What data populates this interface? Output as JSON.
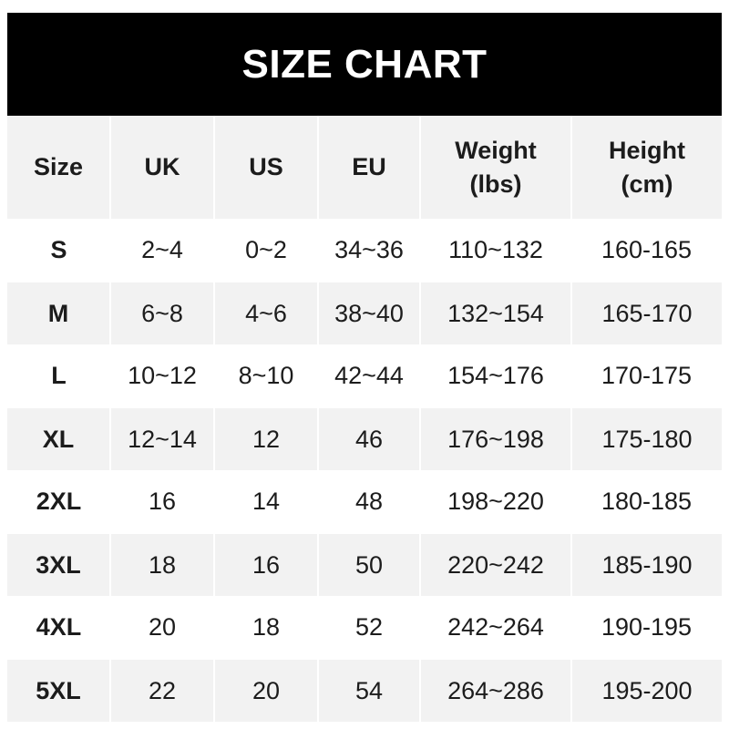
{
  "title": "SIZE CHART",
  "columns": [
    "Size",
    "UK",
    "US",
    "EU",
    "Weight\n(lbs)",
    "Height\n(cm)"
  ],
  "rows": [
    [
      "S",
      "2~4",
      "0~2",
      "34~36",
      "110~132",
      "160-165"
    ],
    [
      "M",
      "6~8",
      "4~6",
      "38~40",
      "132~154",
      "165-170"
    ],
    [
      "L",
      "10~12",
      "8~10",
      "42~44",
      "154~176",
      "170-175"
    ],
    [
      "XL",
      "12~14",
      "12",
      "46",
      "176~198",
      "175-180"
    ],
    [
      "2XL",
      "16",
      "14",
      "48",
      "198~220",
      "180-185"
    ],
    [
      "3XL",
      "18",
      "16",
      "50",
      "220~242",
      "185-190"
    ],
    [
      "4XL",
      "20",
      "18",
      "52",
      "242~264",
      "190-195"
    ],
    [
      "5XL",
      "22",
      "20",
      "54",
      "264~286",
      "195-200"
    ]
  ]
}
